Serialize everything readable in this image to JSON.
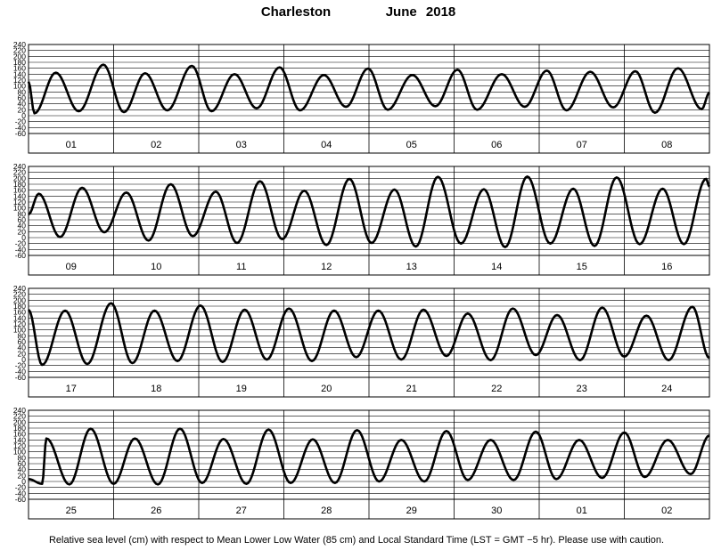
{
  "header": {
    "station": "Charleston",
    "month": "June",
    "year": "2018"
  },
  "footer": {
    "note": "Relative sea level (cm) with respect to Mean Lower Low Water (85 cm) and Local Standard Time (LST = GMT −5 hr). Please use with caution."
  },
  "chart_data": {
    "type": "line",
    "title": "Charleston June 2018",
    "xlabel": "",
    "ylabel": "",
    "ylim": [
      -60,
      240
    ],
    "y_ticks": [
      -60,
      -40,
      -20,
      0,
      20,
      40,
      60,
      80,
      100,
      120,
      140,
      160,
      180,
      200,
      220,
      240
    ],
    "grid": true,
    "rows": [
      {
        "days": [
          "01",
          "02",
          "03",
          "04",
          "05",
          "06",
          "07",
          "08"
        ],
        "start_value": 115,
        "extremes": [
          {
            "d": 0.07,
            "v": 8
          },
          {
            "d": 0.32,
            "v": 145
          },
          {
            "d": 0.59,
            "v": 15
          },
          {
            "d": 0.88,
            "v": 172
          },
          {
            "d": 1.12,
            "v": 12
          },
          {
            "d": 1.37,
            "v": 143
          },
          {
            "d": 1.63,
            "v": 18
          },
          {
            "d": 1.92,
            "v": 168
          },
          {
            "d": 2.15,
            "v": 15
          },
          {
            "d": 2.42,
            "v": 140
          },
          {
            "d": 2.68,
            "v": 25
          },
          {
            "d": 2.95,
            "v": 163
          },
          {
            "d": 3.19,
            "v": 18
          },
          {
            "d": 3.47,
            "v": 137
          },
          {
            "d": 3.73,
            "v": 30
          },
          {
            "d": 3.99,
            "v": 159
          },
          {
            "d": 4.22,
            "v": 20
          },
          {
            "d": 4.51,
            "v": 137
          },
          {
            "d": 4.78,
            "v": 32
          },
          {
            "d": 5.04,
            "v": 155
          },
          {
            "d": 5.27,
            "v": 20
          },
          {
            "d": 5.56,
            "v": 140
          },
          {
            "d": 5.83,
            "v": 30
          },
          {
            "d": 6.09,
            "v": 152
          },
          {
            "d": 6.32,
            "v": 18
          },
          {
            "d": 6.6,
            "v": 148
          },
          {
            "d": 6.87,
            "v": 28
          },
          {
            "d": 7.13,
            "v": 150
          },
          {
            "d": 7.36,
            "v": 10
          },
          {
            "d": 7.63,
            "v": 160
          },
          {
            "d": 7.91,
            "v": 22
          }
        ],
        "end_value": 78
      },
      {
        "days": [
          "09",
          "10",
          "11",
          "12",
          "13",
          "14",
          "15",
          "16"
        ],
        "start_value": 78,
        "extremes": [
          {
            "d": 0.12,
            "v": 148
          },
          {
            "d": 0.37,
            "v": 2
          },
          {
            "d": 0.63,
            "v": 168
          },
          {
            "d": 0.89,
            "v": 18
          },
          {
            "d": 1.15,
            "v": 152
          },
          {
            "d": 1.41,
            "v": -10
          },
          {
            "d": 1.67,
            "v": 180
          },
          {
            "d": 1.93,
            "v": 5
          },
          {
            "d": 2.2,
            "v": 155
          },
          {
            "d": 2.45,
            "v": -18
          },
          {
            "d": 2.72,
            "v": 190
          },
          {
            "d": 2.98,
            "v": -5
          },
          {
            "d": 3.24,
            "v": 158
          },
          {
            "d": 3.5,
            "v": -25
          },
          {
            "d": 3.77,
            "v": 198
          },
          {
            "d": 4.03,
            "v": -18
          },
          {
            "d": 4.3,
            "v": 162
          },
          {
            "d": 4.55,
            "v": -30
          },
          {
            "d": 4.81,
            "v": 205
          },
          {
            "d": 5.08,
            "v": -20
          },
          {
            "d": 5.35,
            "v": 163
          },
          {
            "d": 5.6,
            "v": -32
          },
          {
            "d": 5.86,
            "v": 206
          },
          {
            "d": 6.13,
            "v": -20
          },
          {
            "d": 6.4,
            "v": 165
          },
          {
            "d": 6.65,
            "v": -28
          },
          {
            "d": 6.91,
            "v": 203
          },
          {
            "d": 7.18,
            "v": -22
          },
          {
            "d": 7.45,
            "v": 165
          },
          {
            "d": 7.7,
            "v": -22
          },
          {
            "d": 7.96,
            "v": 198
          }
        ],
        "end_value": 172
      },
      {
        "days": [
          "17",
          "18",
          "19",
          "20",
          "21",
          "22",
          "23",
          "24"
        ],
        "start_value": 168,
        "extremes": [
          {
            "d": 0.16,
            "v": -18
          },
          {
            "d": 0.43,
            "v": 165
          },
          {
            "d": 0.69,
            "v": -15
          },
          {
            "d": 0.97,
            "v": 190
          },
          {
            "d": 1.22,
            "v": -12
          },
          {
            "d": 1.48,
            "v": 165
          },
          {
            "d": 1.75,
            "v": -5
          },
          {
            "d": 2.02,
            "v": 182
          },
          {
            "d": 2.28,
            "v": -8
          },
          {
            "d": 2.54,
            "v": 168
          },
          {
            "d": 2.8,
            "v": 0
          },
          {
            "d": 3.06,
            "v": 172
          },
          {
            "d": 3.33,
            "v": -5
          },
          {
            "d": 3.59,
            "v": 165
          },
          {
            "d": 3.85,
            "v": 8
          },
          {
            "d": 4.11,
            "v": 165
          },
          {
            "d": 4.38,
            "v": 0
          },
          {
            "d": 4.64,
            "v": 168
          },
          {
            "d": 4.91,
            "v": 12
          },
          {
            "d": 5.16,
            "v": 155
          },
          {
            "d": 5.43,
            "v": -2
          },
          {
            "d": 5.69,
            "v": 172
          },
          {
            "d": 5.96,
            "v": 15
          },
          {
            "d": 6.21,
            "v": 150
          },
          {
            "d": 6.48,
            "v": -2
          },
          {
            "d": 6.74,
            "v": 175
          },
          {
            "d": 7.0,
            "v": 10
          },
          {
            "d": 7.26,
            "v": 148
          },
          {
            "d": 7.52,
            "v": -2
          },
          {
            "d": 7.8,
            "v": 178
          }
        ],
        "end_value": 5
      },
      {
        "days": [
          "25",
          "26",
          "27",
          "28",
          "29",
          "30",
          "01",
          "02"
        ],
        "start_value": 8,
        "extremes": [
          {
            "d": 0.16,
            "v": -8
          },
          {
            "d": 0.21,
            "v": 145
          },
          {
            "d": 0.48,
            "v": -10
          },
          {
            "d": 0.73,
            "v": 178
          },
          {
            "d": 1.0,
            "v": -8
          },
          {
            "d": 1.25,
            "v": 145
          },
          {
            "d": 1.52,
            "v": -10
          },
          {
            "d": 1.78,
            "v": 178
          },
          {
            "d": 2.04,
            "v": -5
          },
          {
            "d": 2.29,
            "v": 143
          },
          {
            "d": 2.56,
            "v": -8
          },
          {
            "d": 2.82,
            "v": 175
          },
          {
            "d": 3.08,
            "v": -5
          },
          {
            "d": 3.34,
            "v": 142
          },
          {
            "d": 3.6,
            "v": -5
          },
          {
            "d": 3.86,
            "v": 173
          },
          {
            "d": 4.12,
            "v": 0
          },
          {
            "d": 4.38,
            "v": 140
          },
          {
            "d": 4.65,
            "v": 0
          },
          {
            "d": 4.91,
            "v": 170
          },
          {
            "d": 5.16,
            "v": 5
          },
          {
            "d": 5.43,
            "v": 140
          },
          {
            "d": 5.7,
            "v": 5
          },
          {
            "d": 5.96,
            "v": 168
          },
          {
            "d": 6.2,
            "v": 8
          },
          {
            "d": 6.47,
            "v": 140
          },
          {
            "d": 6.74,
            "v": 12
          },
          {
            "d": 7.0,
            "v": 165
          },
          {
            "d": 7.24,
            "v": 15
          },
          {
            "d": 7.51,
            "v": 140
          },
          {
            "d": 7.78,
            "v": 25
          }
        ],
        "end_value": 155
      }
    ]
  }
}
